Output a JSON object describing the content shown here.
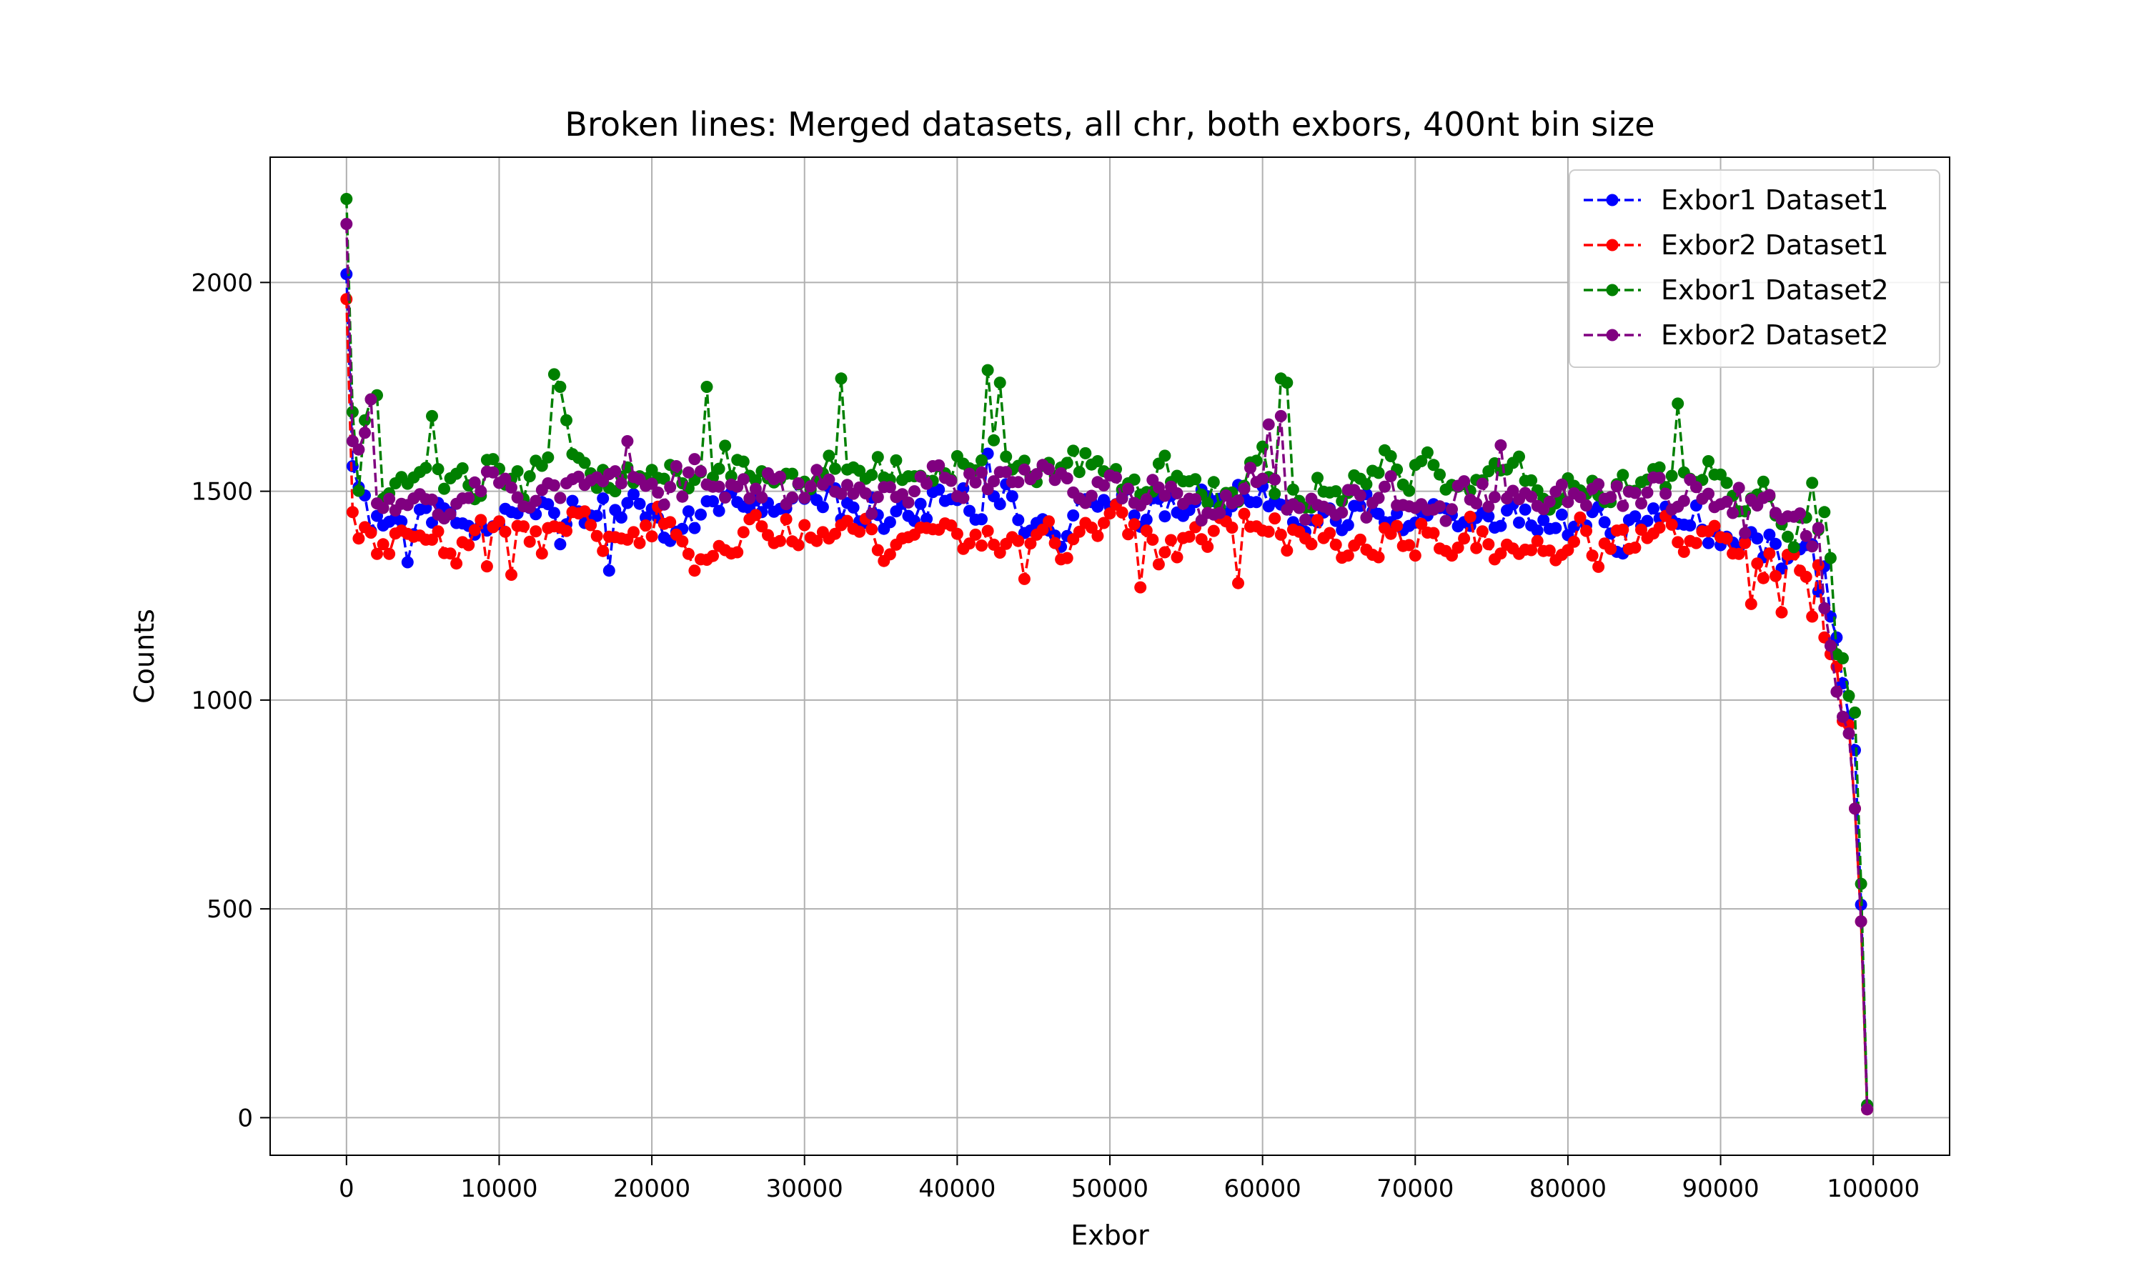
{
  "chart_data": {
    "type": "line",
    "title": "Broken lines: Merged datasets, all chr, both exbors, 400nt bin size",
    "xlabel": "Exbor",
    "ylabel": "Counts",
    "xlim": [
      -5000,
      105000
    ],
    "ylim": [
      -90,
      2300
    ],
    "xticks": [
      0,
      10000,
      20000,
      30000,
      40000,
      50000,
      60000,
      70000,
      80000,
      90000,
      100000
    ],
    "yticks": [
      0,
      500,
      1000,
      1500,
      2000
    ],
    "grid": true,
    "legend_position": "upper right",
    "bin_size": 400,
    "series": [
      {
        "name": "Exbor1 Dataset1",
        "color": "#0000ff",
        "line_style": "dashed",
        "marker": "circle",
        "base": 1450,
        "amp": 55,
        "seed": 11,
        "keypoints": [
          [
            0,
            2020
          ],
          [
            400,
            1560
          ],
          [
            800,
            1510
          ],
          [
            1200,
            1490
          ],
          [
            4000,
            1330
          ],
          [
            17200,
            1310
          ],
          [
            35000,
            1570
          ],
          [
            42000,
            1590
          ],
          [
            91000,
            1370
          ],
          [
            95000,
            1260
          ],
          [
            96400,
            1260
          ],
          [
            96800,
            1320
          ],
          [
            97200,
            1200
          ],
          [
            97600,
            1150
          ],
          [
            98000,
            1040
          ],
          [
            98400,
            960
          ],
          [
            98800,
            880
          ],
          [
            99200,
            510
          ],
          [
            99600,
            30
          ]
        ]
      },
      {
        "name": "Exbor2 Dataset1",
        "color": "#ff0000",
        "line_style": "dashed",
        "marker": "circle",
        "base": 1400,
        "amp": 55,
        "seed": 23,
        "keypoints": [
          [
            0,
            1960
          ],
          [
            400,
            1450
          ],
          [
            2000,
            1350
          ],
          [
            9200,
            1320
          ],
          [
            10800,
            1300
          ],
          [
            44400,
            1290
          ],
          [
            52000,
            1270
          ],
          [
            58400,
            1280
          ],
          [
            90000,
            1390
          ],
          [
            92000,
            1230
          ],
          [
            94000,
            1210
          ],
          [
            96000,
            1200
          ],
          [
            96800,
            1150
          ],
          [
            97200,
            1110
          ],
          [
            97600,
            1080
          ],
          [
            98000,
            950
          ],
          [
            98400,
            940
          ],
          [
            98800,
            740
          ],
          [
            99200,
            470
          ],
          [
            99600,
            20
          ]
        ]
      },
      {
        "name": "Exbor1 Dataset2",
        "color": "#008000",
        "line_style": "dashed",
        "marker": "circle",
        "base": 1540,
        "amp": 55,
        "seed": 37,
        "keypoints": [
          [
            0,
            2200
          ],
          [
            400,
            1690
          ],
          [
            1200,
            1670
          ],
          [
            1600,
            1720
          ],
          [
            2000,
            1730
          ],
          [
            5600,
            1680
          ],
          [
            13600,
            1780
          ],
          [
            14000,
            1750
          ],
          [
            14400,
            1670
          ],
          [
            23600,
            1750
          ],
          [
            32400,
            1770
          ],
          [
            42000,
            1790
          ],
          [
            42800,
            1760
          ],
          [
            61200,
            1770
          ],
          [
            61600,
            1760
          ],
          [
            87200,
            1710
          ],
          [
            90000,
            1540
          ],
          [
            96000,
            1520
          ],
          [
            96800,
            1450
          ],
          [
            97200,
            1340
          ],
          [
            97600,
            1110
          ],
          [
            98000,
            1100
          ],
          [
            98400,
            1010
          ],
          [
            98800,
            970
          ],
          [
            99200,
            560
          ],
          [
            99600,
            30
          ]
        ]
      },
      {
        "name": "Exbor2 Dataset2",
        "color": "#800080",
        "line_style": "dashed",
        "marker": "circle",
        "base": 1510,
        "amp": 55,
        "seed": 53,
        "keypoints": [
          [
            0,
            2140
          ],
          [
            400,
            1620
          ],
          [
            800,
            1600
          ],
          [
            1200,
            1640
          ],
          [
            1600,
            1720
          ],
          [
            18400,
            1620
          ],
          [
            60400,
            1660
          ],
          [
            61200,
            1680
          ],
          [
            75600,
            1610
          ],
          [
            91600,
            1400
          ],
          [
            95000,
            1230
          ],
          [
            96800,
            1220
          ],
          [
            97200,
            1130
          ],
          [
            97600,
            1020
          ],
          [
            98000,
            960
          ],
          [
            98400,
            920
          ],
          [
            98800,
            740
          ],
          [
            99200,
            470
          ],
          [
            99600,
            20
          ]
        ]
      }
    ]
  }
}
